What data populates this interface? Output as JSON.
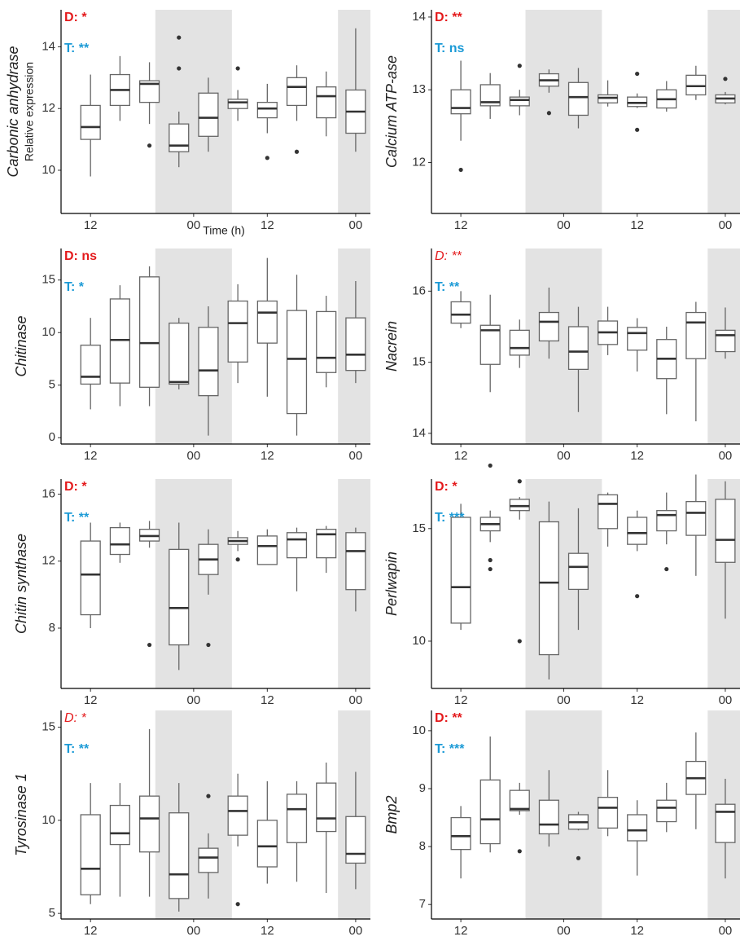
{
  "chart_data": [
    {
      "type": "box",
      "ylabel": "Carbonic anhydrase",
      "ylabel2": "Relative expression",
      "xlabel": "Time (h)",
      "d_label": "D: *",
      "t_label": "T: **",
      "d_color": "#e41a1c",
      "t_color": "#1b9ad6",
      "ylim": [
        8.6,
        15.2
      ],
      "yticks": [
        10,
        12,
        14
      ],
      "xlim": [
        -1,
        9.5
      ],
      "xticks": [
        {
          "value": 0,
          "label": "12"
        },
        {
          "value": 3.5,
          "label": "00"
        },
        {
          "value": 6,
          "label": "12"
        },
        {
          "value": 9,
          "label": "00"
        }
      ],
      "shade": [
        [
          2.2,
          4.8
        ],
        [
          8.4,
          9.5
        ]
      ],
      "boxes": [
        [
          9.8,
          11.0,
          11.4,
          12.1,
          13.1
        ],
        [
          11.6,
          12.1,
          12.6,
          13.1,
          13.7
        ],
        [
          11.5,
          12.2,
          12.8,
          12.9,
          13.5
        ],
        [
          10.1,
          10.6,
          10.8,
          11.5,
          11.9
        ],
        [
          10.6,
          11.1,
          11.7,
          12.5,
          13.0
        ],
        [
          11.6,
          12.0,
          12.2,
          12.3,
          12.6
        ],
        [
          11.2,
          11.7,
          12.0,
          12.2,
          12.8
        ],
        [
          11.6,
          12.1,
          12.7,
          13.0,
          13.4
        ],
        [
          11.1,
          11.7,
          12.4,
          12.7,
          13.2
        ],
        [
          10.6,
          11.2,
          11.9,
          12.6,
          14.6
        ]
      ],
      "outliers": [
        [],
        [],
        [
          10.8
        ],
        [
          14.3,
          13.3
        ],
        [],
        [
          13.3
        ],
        [
          10.4
        ],
        [
          10.6
        ],
        [],
        []
      ]
    },
    {
      "type": "box",
      "ylabel": "Calcium ATP-ase",
      "d_label": "D: **",
      "t_label": "T: ns",
      "d_color": "#e41a1c",
      "t_color": "#1b9ad6",
      "ylim": [
        11.3,
        14.1
      ],
      "yticks": [
        12,
        13,
        14
      ],
      "xlim": [
        -1,
        9.5
      ],
      "xticks": [
        {
          "value": 0,
          "label": "12"
        },
        {
          "value": 3.5,
          "label": "00"
        },
        {
          "value": 6,
          "label": "12"
        },
        {
          "value": 9,
          "label": "00"
        }
      ],
      "shade": [
        [
          2.2,
          4.8
        ],
        [
          8.4,
          9.5
        ]
      ],
      "boxes": [
        [
          12.3,
          12.67,
          12.75,
          13.0,
          13.4
        ],
        [
          12.6,
          12.78,
          12.83,
          13.07,
          13.23
        ],
        [
          12.65,
          12.78,
          12.86,
          12.9,
          13.0
        ],
        [
          12.96,
          13.05,
          13.13,
          13.22,
          13.28
        ],
        [
          12.47,
          12.65,
          12.9,
          13.1,
          13.3
        ],
        [
          12.77,
          12.82,
          12.89,
          12.93,
          13.13
        ],
        [
          12.75,
          12.77,
          12.82,
          12.9,
          12.95
        ],
        [
          12.7,
          12.75,
          12.87,
          13.0,
          13.12
        ],
        [
          12.86,
          12.93,
          13.05,
          13.2,
          13.33
        ],
        [
          12.8,
          12.82,
          12.88,
          12.93,
          12.97
        ]
      ],
      "outliers": [
        [
          11.9
        ],
        [],
        [
          13.33
        ],
        [
          12.68
        ],
        [],
        [],
        [
          13.22,
          12.45
        ],
        [],
        [],
        [
          13.15
        ]
      ]
    },
    {
      "type": "box",
      "ylabel": "Chitinase",
      "d_label": "D: ns",
      "t_label": "T: *",
      "d_color": "#e41a1c",
      "t_color": "#1b9ad6",
      "ylim": [
        -0.6,
        18
      ],
      "yticks": [
        0,
        5,
        10,
        15
      ],
      "xlim": [
        -1,
        9.5
      ],
      "xticks": [
        {
          "value": 0,
          "label": "12"
        },
        {
          "value": 3.5,
          "label": "00"
        },
        {
          "value": 6,
          "label": "12"
        },
        {
          "value": 9,
          "label": "00"
        }
      ],
      "shade": [
        [
          2.2,
          4.8
        ],
        [
          8.4,
          9.5
        ]
      ],
      "boxes": [
        [
          2.7,
          5.1,
          5.8,
          8.8,
          11.4
        ],
        [
          3.0,
          5.2,
          9.3,
          13.2,
          14.5
        ],
        [
          3.0,
          4.8,
          9.0,
          15.3,
          16.3
        ],
        [
          4.6,
          5.1,
          5.3,
          10.9,
          11.4
        ],
        [
          0.2,
          4.0,
          6.4,
          10.5,
          12.5
        ],
        [
          5.2,
          7.2,
          10.9,
          13.0,
          14.6
        ],
        [
          3.9,
          9.0,
          11.9,
          13.0,
          17.1
        ],
        [
          0.2,
          2.3,
          7.5,
          12.1,
          15.5
        ],
        [
          4.8,
          6.2,
          7.6,
          12.0,
          13.5
        ],
        [
          5.2,
          6.4,
          7.9,
          11.4,
          14.9
        ]
      ],
      "outliers": [
        [],
        [],
        [],
        [],
        [],
        [],
        [],
        [],
        [],
        []
      ]
    },
    {
      "type": "box",
      "ylabel": "Nacrein",
      "d_label": "D: **",
      "d_italic": true,
      "t_label": "T: **",
      "d_color": "#e41a1c",
      "t_color": "#1b9ad6",
      "ylim": [
        13.85,
        16.6
      ],
      "yticks": [
        14,
        15,
        16
      ],
      "xlim": [
        -1,
        9.5
      ],
      "xticks": [
        {
          "value": 0,
          "label": "12"
        },
        {
          "value": 3.5,
          "label": "00"
        },
        {
          "value": 6,
          "label": "12"
        },
        {
          "value": 9,
          "label": "00"
        }
      ],
      "shade": [
        [
          2.2,
          4.8
        ],
        [
          8.4,
          9.5
        ]
      ],
      "boxes": [
        [
          15.48,
          15.55,
          15.67,
          15.85,
          16.0
        ],
        [
          14.58,
          14.97,
          15.45,
          15.52,
          15.95
        ],
        [
          14.92,
          15.1,
          15.2,
          15.45,
          15.6
        ],
        [
          15.05,
          15.3,
          15.57,
          15.7,
          16.05
        ],
        [
          14.3,
          14.9,
          15.15,
          15.5,
          15.78
        ],
        [
          15.1,
          15.25,
          15.42,
          15.58,
          15.78
        ],
        [
          14.87,
          15.17,
          15.41,
          15.49,
          15.62
        ],
        [
          14.27,
          14.77,
          15.05,
          15.32,
          15.5
        ],
        [
          14.17,
          15.05,
          15.56,
          15.7,
          15.85
        ],
        [
          15.05,
          15.15,
          15.38,
          15.45,
          15.77
        ]
      ],
      "outliers": [
        [],
        [],
        [],
        [],
        [],
        [],
        [],
        [],
        [],
        []
      ]
    },
    {
      "type": "box",
      "ylabel": "Chitin synthase",
      "d_label": "D: *",
      "t_label": "T: **",
      "d_color": "#e41a1c",
      "t_color": "#1b9ad6",
      "ylim": [
        4.4,
        16.9
      ],
      "yticks": [
        8,
        12,
        16
      ],
      "xlim": [
        -1,
        9.5
      ],
      "xticks": [
        {
          "value": 0,
          "label": "12"
        },
        {
          "value": 3.5,
          "label": "00"
        },
        {
          "value": 6,
          "label": "12"
        },
        {
          "value": 9,
          "label": "00"
        }
      ],
      "shade": [
        [
          2.2,
          4.8
        ],
        [
          8.4,
          9.5
        ]
      ],
      "boxes": [
        [
          8.0,
          8.8,
          11.2,
          13.2,
          14.3
        ],
        [
          11.9,
          12.4,
          13.0,
          14.0,
          14.3
        ],
        [
          12.8,
          13.2,
          13.5,
          13.9,
          14.4
        ],
        [
          5.5,
          7.0,
          9.2,
          12.7,
          14.3
        ],
        [
          10.0,
          11.2,
          12.1,
          13.0,
          13.9
        ],
        [
          12.6,
          13.0,
          13.2,
          13.4,
          13.8
        ],
        [
          11.8,
          11.8,
          12.9,
          13.5,
          13.9
        ],
        [
          10.2,
          12.2,
          13.3,
          13.7,
          14.0
        ],
        [
          11.3,
          12.2,
          13.6,
          13.9,
          14.1
        ],
        [
          9.0,
          10.3,
          12.6,
          13.7,
          14.0
        ]
      ],
      "outliers": [
        [],
        [],
        [
          7.0
        ],
        [],
        [
          7.0
        ],
        [
          12.1
        ],
        [],
        [],
        [],
        []
      ]
    },
    {
      "type": "box",
      "ylabel": "Perlwapin",
      "d_label": "D: *",
      "t_label": "T: ***",
      "d_color": "#e41a1c",
      "t_color": "#1b9ad6",
      "ylim": [
        7.9,
        17.2
      ],
      "yticks": [
        10,
        15
      ],
      "xlim": [
        -1,
        9.5
      ],
      "xticks": [
        {
          "value": 0,
          "label": "12"
        },
        {
          "value": 3.5,
          "label": "00"
        },
        {
          "value": 6,
          "label": "12"
        },
        {
          "value": 9,
          "label": "00"
        }
      ],
      "shade": [
        [
          2.2,
          4.8
        ],
        [
          8.4,
          9.5
        ]
      ],
      "boxes": [
        [
          10.5,
          10.8,
          12.4,
          15.5,
          16.1
        ],
        [
          14.4,
          14.9,
          15.2,
          15.5,
          15.8
        ],
        [
          15.4,
          15.8,
          16.0,
          16.3,
          16.4
        ],
        [
          8.3,
          9.4,
          12.6,
          15.3,
          16.2
        ],
        [
          10.5,
          12.3,
          13.3,
          13.9,
          15.9
        ],
        [
          14.2,
          15.0,
          16.1,
          16.5,
          16.6
        ],
        [
          14.0,
          14.3,
          14.8,
          15.5,
          15.8
        ],
        [
          14.3,
          14.9,
          15.6,
          15.8,
          16.6
        ],
        [
          12.9,
          14.7,
          15.7,
          16.2,
          17.4
        ],
        [
          11.0,
          13.5,
          14.5,
          16.3,
          17.1
        ]
      ],
      "outliers": [
        [],
        [
          17.8,
          13.6,
          13.2
        ],
        [
          17.1,
          10.0
        ],
        [],
        [],
        [],
        [
          12.0
        ],
        [
          13.2
        ],
        [],
        []
      ]
    },
    {
      "type": "box",
      "ylabel": "Tyrosinase 1",
      "d_label": "D: *",
      "d_italic": true,
      "t_label": "T: **",
      "d_color": "#e41a1c",
      "t_color": "#1b9ad6",
      "ylim": [
        4.7,
        15.9
      ],
      "yticks": [
        5,
        10,
        15
      ],
      "xlim": [
        -1,
        9.5
      ],
      "xticks": [
        {
          "value": 0,
          "label": "12"
        },
        {
          "value": 3.5,
          "label": "00"
        },
        {
          "value": 6,
          "label": "12"
        },
        {
          "value": 9,
          "label": "00"
        }
      ],
      "shade": [
        [
          2.2,
          4.8
        ],
        [
          8.4,
          9.5
        ]
      ],
      "boxes": [
        [
          5.5,
          6.0,
          7.4,
          10.3,
          12.0
        ],
        [
          5.9,
          8.7,
          9.3,
          10.8,
          12.0
        ],
        [
          5.9,
          8.3,
          10.1,
          11.3,
          14.9
        ],
        [
          5.1,
          5.8,
          7.1,
          10.4,
          12.0
        ],
        [
          5.8,
          7.2,
          8.0,
          8.5,
          9.3
        ],
        [
          8.6,
          9.2,
          10.5,
          11.3,
          12.5
        ],
        [
          6.6,
          7.5,
          8.6,
          10.0,
          12.1
        ],
        [
          6.7,
          8.8,
          10.6,
          11.4,
          12.1
        ],
        [
          6.1,
          9.4,
          10.1,
          12.0,
          13.1
        ],
        [
          6.3,
          7.7,
          8.2,
          10.2,
          12.6
        ]
      ],
      "outliers": [
        [],
        [],
        [],
        [],
        [
          11.3
        ],
        [
          5.5
        ],
        [],
        [],
        [],
        []
      ]
    },
    {
      "type": "box",
      "ylabel": "Bmp2",
      "d_label": "D: **",
      "t_label": "T: ***",
      "d_color": "#e41a1c",
      "t_color": "#1b9ad6",
      "ylim": [
        6.75,
        10.35
      ],
      "yticks": [
        7,
        8,
        9,
        10
      ],
      "xlim": [
        -1,
        9.5
      ],
      "xticks": [
        {
          "value": 0,
          "label": "12"
        },
        {
          "value": 3.5,
          "label": "00"
        },
        {
          "value": 6,
          "label": "12"
        },
        {
          "value": 9,
          "label": "00"
        }
      ],
      "shade": [
        [
          2.2,
          4.8
        ],
        [
          8.4,
          9.5
        ]
      ],
      "boxes": [
        [
          7.45,
          7.95,
          8.18,
          8.5,
          8.7
        ],
        [
          7.9,
          8.05,
          8.47,
          9.15,
          9.9
        ],
        [
          8.55,
          8.62,
          8.65,
          8.97,
          9.1
        ],
        [
          8.0,
          8.22,
          8.38,
          8.8,
          9.32
        ],
        [
          8.28,
          8.3,
          8.42,
          8.55,
          8.6
        ],
        [
          8.18,
          8.32,
          8.67,
          8.85,
          9.32
        ],
        [
          7.5,
          8.1,
          8.28,
          8.55,
          8.8
        ],
        [
          8.25,
          8.43,
          8.67,
          8.8,
          9.1
        ],
        [
          8.3,
          8.9,
          9.18,
          9.47,
          9.97
        ],
        [
          7.45,
          8.07,
          8.6,
          8.73,
          9.17
        ]
      ],
      "outliers": [
        [],
        [],
        [
          7.92
        ],
        [],
        [
          7.8
        ],
        [],
        [],
        [],
        [],
        []
      ]
    }
  ]
}
